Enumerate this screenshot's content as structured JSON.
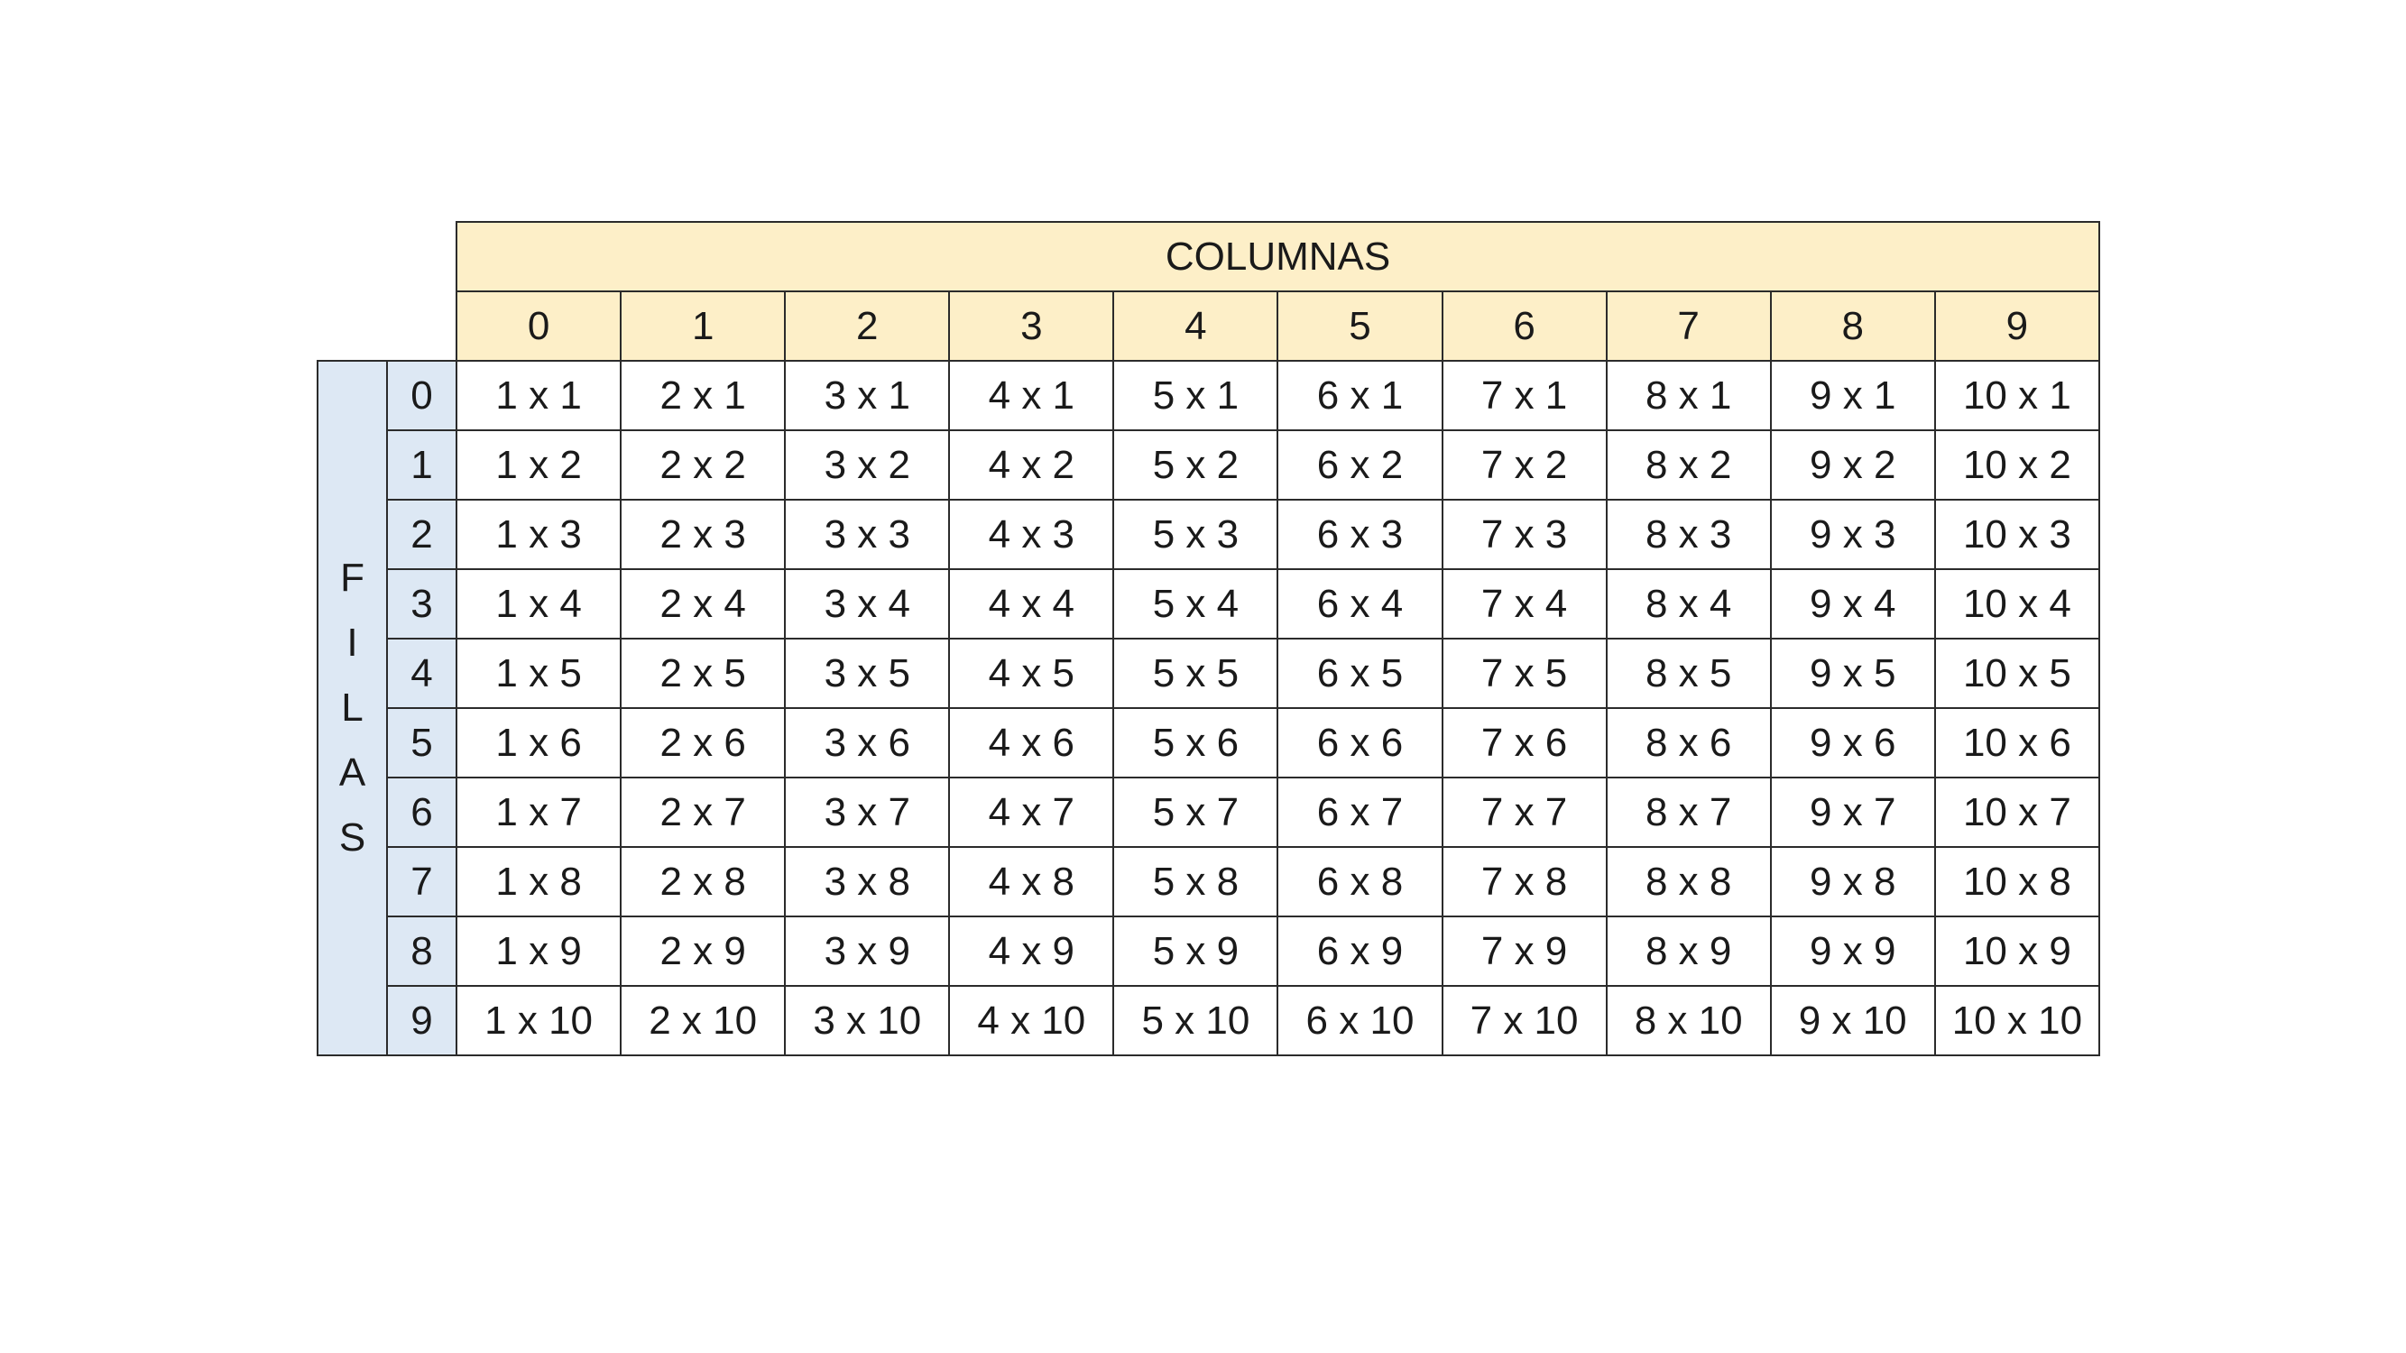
{
  "header": {
    "title": "COLUMNAS",
    "column_labels": [
      "0",
      "1",
      "2",
      "3",
      "4",
      "5",
      "6",
      "7",
      "8",
      "9"
    ]
  },
  "side": {
    "letters": [
      "F",
      "I",
      "L",
      "A",
      "S"
    ]
  },
  "rows": [
    {
      "label": "0",
      "cells": [
        "1 x 1",
        "2 x 1",
        "3 x 1",
        "4 x 1",
        "5 x 1",
        "6 x 1",
        "7 x 1",
        "8 x 1",
        "9 x 1",
        "10 x 1"
      ]
    },
    {
      "label": "1",
      "cells": [
        "1 x 2",
        "2 x 2",
        "3 x 2",
        "4 x 2",
        "5 x 2",
        "6 x 2",
        "7 x 2",
        "8 x 2",
        "9 x 2",
        "10 x 2"
      ]
    },
    {
      "label": "2",
      "cells": [
        "1 x 3",
        "2 x 3",
        "3 x 3",
        "4 x 3",
        "5 x 3",
        "6 x 3",
        "7 x 3",
        "8 x 3",
        "9 x 3",
        "10 x 3"
      ]
    },
    {
      "label": "3",
      "cells": [
        "1 x 4",
        "2 x 4",
        "3 x 4",
        "4 x 4",
        "5 x 4",
        "6 x 4",
        "7 x 4",
        "8 x 4",
        "9 x 4",
        "10 x 4"
      ]
    },
    {
      "label": "4",
      "cells": [
        "1 x 5",
        "2 x 5",
        "3 x 5",
        "4 x 5",
        "5 x 5",
        "6 x 5",
        "7 x 5",
        "8 x 5",
        "9 x 5",
        "10 x 5"
      ]
    },
    {
      "label": "5",
      "cells": [
        "1 x 6",
        "2 x 6",
        "3 x 6",
        "4 x 6",
        "5 x 6",
        "6 x 6",
        "7 x 6",
        "8 x 6",
        "9 x 6",
        "10 x 6"
      ]
    },
    {
      "label": "6",
      "cells": [
        "1 x 7",
        "2 x 7",
        "3 x 7",
        "4 x 7",
        "5 x 7",
        "6 x 7",
        "7 x 7",
        "8 x 7",
        "9 x 7",
        "10 x 7"
      ]
    },
    {
      "label": "7",
      "cells": [
        "1 x 8",
        "2 x 8",
        "3 x 8",
        "4 x 8",
        "5 x 8",
        "6 x 8",
        "7 x 8",
        "8 x 8",
        "9 x 8",
        "10 x 8"
      ]
    },
    {
      "label": "8",
      "cells": [
        "1 x 9",
        "2 x 9",
        "3 x 9",
        "4 x 9",
        "5 x 9",
        "6 x 9",
        "7 x 9",
        "8 x 9",
        "9 x 9",
        "10 x 9"
      ]
    },
    {
      "label": "9",
      "cells": [
        "1 x 10",
        "2 x 10",
        "3 x 10",
        "4 x 10",
        "5 x 10",
        "6 x 10",
        "7 x 10",
        "8 x 10",
        "9 x 10",
        "10 x 10"
      ]
    }
  ],
  "colors": {
    "header_fill": "#fdefc8",
    "side_fill": "#dde8f4",
    "border": "#2b2b2b"
  }
}
